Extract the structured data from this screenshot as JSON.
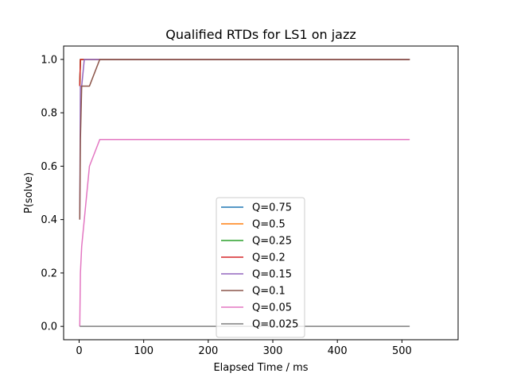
{
  "chart_data": {
    "type": "line",
    "title": "Qualified RTDs for LS1 on jazz",
    "xlabel": "Elapsed Time / ms",
    "ylabel": "P(solve)",
    "xlim": [
      -24,
      587
    ],
    "ylim": [
      -0.05,
      1.05
    ],
    "xticks": [
      0,
      100,
      200,
      300,
      400,
      500
    ],
    "yticks": [
      0.0,
      0.2,
      0.4,
      0.6,
      0.8,
      1.0
    ],
    "xtick_labels": [
      "0",
      "100",
      "200",
      "300",
      "400",
      "500"
    ],
    "ytick_labels": [
      "0.0",
      "0.2",
      "0.4",
      "0.6",
      "0.8",
      "1.0"
    ],
    "grid": false,
    "legend_position": "lower-center",
    "series": [
      {
        "name": "Q=0.75",
        "color": "#1f77b4",
        "x": [
          1,
          2,
          512
        ],
        "y": [
          0.9,
          1.0,
          1.0
        ]
      },
      {
        "name": "Q=0.5",
        "color": "#ff7f0e",
        "x": [
          1,
          2,
          512
        ],
        "y": [
          0.9,
          1.0,
          1.0
        ]
      },
      {
        "name": "Q=0.25",
        "color": "#2ca02c",
        "x": [
          1,
          2,
          512
        ],
        "y": [
          0.9,
          1.0,
          1.0
        ]
      },
      {
        "name": "Q=0.2",
        "color": "#d62728",
        "x": [
          1,
          2,
          512
        ],
        "y": [
          0.9,
          1.0,
          1.0
        ]
      },
      {
        "name": "Q=0.15",
        "color": "#9467bd",
        "x": [
          1,
          2,
          4,
          8,
          512
        ],
        "y": [
          0.4,
          0.9,
          0.9,
          1.0,
          1.0
        ]
      },
      {
        "name": "Q=0.1",
        "color": "#8c564b",
        "x": [
          1,
          2,
          4,
          8,
          16,
          32,
          512
        ],
        "y": [
          0.4,
          0.7,
          0.9,
          0.9,
          0.9,
          1.0,
          1.0
        ]
      },
      {
        "name": "Q=0.05",
        "color": "#e377c2",
        "x": [
          1,
          2,
          4,
          8,
          16,
          32,
          512
        ],
        "y": [
          0.0,
          0.2,
          0.3,
          0.4,
          0.6,
          0.7,
          0.7
        ]
      },
      {
        "name": "Q=0.025",
        "color": "#7f7f7f",
        "x": [
          1,
          512
        ],
        "y": [
          0.0,
          0.0
        ]
      }
    ]
  }
}
